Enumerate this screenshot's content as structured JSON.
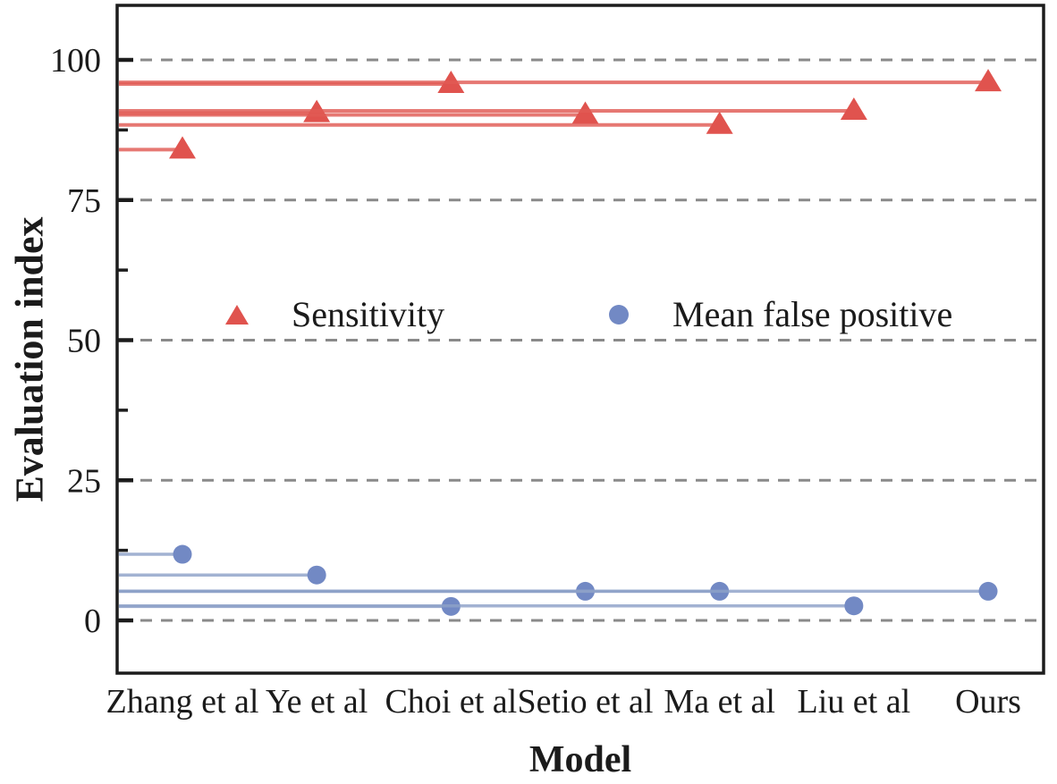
{
  "chart_data": {
    "type": "scatter",
    "subtype": "horizontal-stem-lollipop",
    "title": "",
    "xlabel": "Model",
    "ylabel": "Evaluation index",
    "categories": [
      "Zhang et al",
      "Ye et al",
      "Choi et al",
      "Setio et al",
      "Ma et al",
      "Liu et al",
      "Ours"
    ],
    "series": [
      {
        "name": "Sensitivity",
        "marker": "triangle",
        "color": "#e0534e",
        "stem_color": "#e05a54",
        "values": [
          84,
          90.5,
          95.7,
          90.2,
          88.4,
          90.9,
          96
        ]
      },
      {
        "name": "Mean false positive",
        "marker": "circle",
        "color": "#7289c4",
        "stem_color": "#8da1c8",
        "values": [
          11.8,
          8.1,
          2.5,
          5.2,
          5.2,
          2.6,
          5.2
        ]
      }
    ],
    "yticks": [
      0,
      25,
      50,
      75,
      100
    ],
    "minor_yticks": [
      12.5,
      37.5,
      62.5,
      87.5
    ],
    "ylim": [
      -9.5,
      109.5
    ],
    "grid": {
      "axis": "y",
      "style": "dashed",
      "color": "#8a8a8a"
    },
    "axis_color": "#1c1c1c",
    "legend_position": "inside-middle"
  }
}
